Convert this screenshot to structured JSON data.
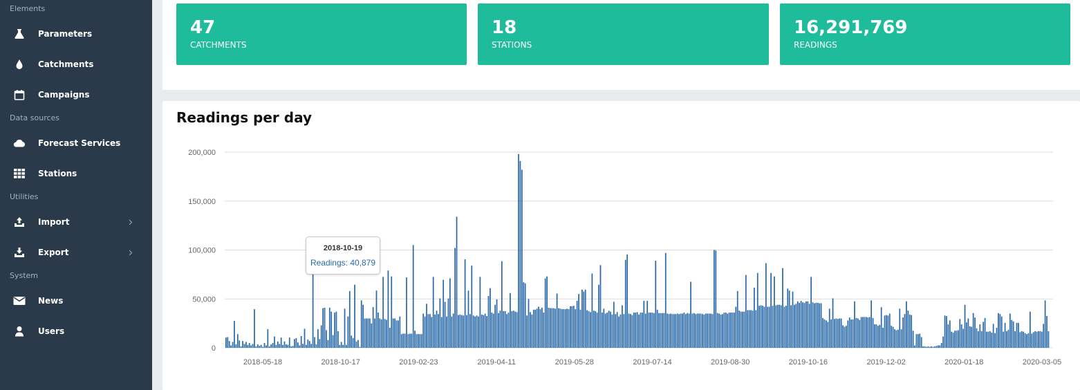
{
  "sidebar": {
    "sections": {
      "elements": "Elements",
      "data_sources": "Data sources",
      "utilities": "Utilities",
      "system": "System"
    },
    "items": [
      {
        "label": "Parameters",
        "icon": "flask-icon"
      },
      {
        "label": "Catchments",
        "icon": "drop-icon"
      },
      {
        "label": "Campaigns",
        "icon": "calendar-icon"
      },
      {
        "label": "Forecast Services",
        "icon": "cloud-icon"
      },
      {
        "label": "Stations",
        "icon": "grid-icon"
      },
      {
        "label": "Import",
        "icon": "upload-icon"
      },
      {
        "label": "Export",
        "icon": "download-icon"
      },
      {
        "label": "News",
        "icon": "envelope-icon"
      },
      {
        "label": "Users",
        "icon": "user-icon"
      }
    ]
  },
  "stats": [
    {
      "value": "47",
      "caption": "CATCHMENTS"
    },
    {
      "value": "18",
      "caption": "STATIONS"
    },
    {
      "value": "16,291,769",
      "caption": "READINGS"
    }
  ],
  "colors": {
    "sidebar": "#2b3a4a",
    "accent": "#1ebc9b",
    "bar": "#2a6aa8"
  },
  "tooltip": {
    "date": "2018-10-19",
    "text": "Readings: 40,879"
  },
  "chart_data": {
    "type": "bar",
    "title": "Readings per day",
    "xlabel": "",
    "ylabel": "",
    "ylim": [
      0,
      200000
    ],
    "yticks": [
      "0",
      "50,000",
      "100,000",
      "150,000",
      "200,000"
    ],
    "yticks_values": [
      0,
      50000,
      100000,
      150000,
      200000
    ],
    "xticks": [
      "2018-05-18",
      "2018-10-17",
      "2019-02-23",
      "2019-04-11",
      "2019-05-28",
      "2019-07-14",
      "2019-08-30",
      "2019-10-16",
      "2019-12-02",
      "2020-01-18",
      "2020-03-05"
    ],
    "grid": true,
    "series": [
      {
        "values": [
          10500,
          11000,
          7000,
          2500,
          6000,
          27500,
          3500,
          14000,
          7500,
          1500,
          7000,
          4000,
          6000,
          3000,
          5000,
          2500,
          4000,
          39500,
          1500,
          3500,
          2000,
          3000,
          1000,
          5000,
          2500,
          19000,
          1500,
          3500,
          5000,
          11500,
          3000,
          6500,
          4000,
          10500,
          3000,
          6500,
          3500,
          3000,
          10500,
          1500,
          2000,
          9000,
          10000,
          5500,
          2500,
          12000,
          4000,
          19500,
          3000,
          8500,
          7000,
          4000,
          75000,
          11000,
          3500,
          19000,
          9000,
          23000,
          40500,
          41000,
          18000,
          8000,
          41000,
          37000,
          13000,
          36000,
          37000,
          17000,
          3000,
          6000,
          3000,
          40000,
          3000,
          32000,
          58000,
          12500,
          10000,
          64500,
          6500,
          8000,
          1000,
          48500,
          44000,
          30000,
          30000,
          30000,
          30000,
          25000,
          41500,
          30000,
          58500,
          36000,
          30000,
          29000,
          72500,
          29500,
          28500,
          79000,
          20500,
          73000,
          30000,
          30000,
          28000,
          28000,
          32000,
          14000,
          14500,
          14500,
          72000,
          14000,
          14500,
          14500,
          105000,
          17500,
          14000,
          14000,
          14000,
          14000,
          35000,
          32000,
          45000,
          34500,
          34500,
          31500,
          72500,
          34000,
          38000,
          34500,
          50500,
          31500,
          69500,
          47000,
          32000,
          50500,
          71000,
          32000,
          35000,
          102000,
          134000,
          33500,
          34000,
          33500,
          33000,
          90500,
          33500,
          58500,
          34500,
          84000,
          33000,
          32000,
          33000,
          32000,
          72500,
          34000,
          33500,
          35000,
          32500,
          53000,
          61000,
          36000,
          35000,
          44000,
          49500,
          35500,
          38000,
          88500,
          37500,
          37500,
          34500,
          36000,
          56000,
          37500,
          38000,
          37000,
          36500,
          198000,
          191000,
          182000,
          67000,
          66000,
          33000,
          50000,
          36500,
          34000,
          39000,
          39000,
          40000,
          42000,
          39500,
          41000,
          36000,
          71000,
          73000,
          41000,
          40500,
          40500,
          40500,
          40000,
          55500,
          40500,
          40000,
          39500,
          39500,
          39500,
          40000,
          39500,
          42500,
          42500,
          43000,
          39500,
          48000,
          55000,
          39000,
          59500,
          57500,
          59500,
          38500,
          37500,
          36500,
          76000,
          38000,
          37500,
          36000,
          64500,
          84500,
          36000,
          40000,
          35000,
          36000,
          38000,
          37000,
          34000,
          47000,
          34500,
          36500,
          32000,
          34000,
          43500,
          34500,
          90000,
          95500,
          35000,
          34500,
          33500,
          36000,
          36000,
          36500,
          34000,
          36000,
          36000,
          48000,
          35000,
          48000,
          36000,
          36000,
          36000,
          35500,
          89000,
          39000,
          35500,
          35500,
          35500,
          35500,
          97000,
          35000,
          34500,
          35000,
          34500,
          34500,
          34500,
          35000,
          34500,
          35000,
          35000,
          36000,
          34500,
          35500,
          35000,
          67500,
          35000,
          35500,
          34500,
          35000,
          35000,
          35000,
          34500,
          34000,
          35000,
          35000,
          35000,
          35000,
          34500,
          100000,
          99500,
          35500,
          35000,
          34000,
          34500,
          36000,
          36000,
          35000,
          36000,
          36000,
          36000,
          36000,
          42000,
          58000,
          38000,
          37000,
          37000,
          37000,
          74500,
          38500,
          38500,
          38500,
          38000,
          61500,
          38500,
          76500,
          43000,
          43500,
          43000,
          42000,
          86500,
          42000,
          42000,
          76500,
          43000,
          73000,
          43500,
          44000,
          44000,
          43500,
          81500,
          42000,
          43000,
          60500,
          58500,
          43500,
          57500,
          44000,
          45000,
          47500,
          46000,
          48000,
          46500,
          46000,
          47500,
          47500,
          45000,
          72500,
          46500,
          45500,
          46000,
          46000,
          45500,
          45500,
          30500,
          29000,
          28000,
          26500,
          40000,
          29000,
          50500,
          29500,
          30000,
          29500,
          30000,
          30000,
          23000,
          21500,
          22500,
          28000,
          31000,
          29000,
          29000,
          47500,
          30500,
          30000,
          28500,
          31500,
          31500,
          31500,
          31500,
          31000,
          31500,
          48500,
          30500,
          24000,
          24000,
          22500,
          23500,
          41500,
          20500,
          33000,
          33500,
          33000,
          35000,
          22500,
          21500,
          19000,
          18000,
          18500,
          40000,
          19000,
          31000,
          34500,
          47500,
          38000,
          34000,
          33500,
          17500,
          2500,
          14000,
          14000,
          14500,
          11000,
          1500,
          1500,
          1000,
          1500,
          1000,
          1500,
          1000,
          1500,
          2000,
          2500,
          2500,
          5000,
          11500,
          33000,
          32500,
          24000,
          28000,
          16500,
          15500,
          17500,
          17500,
          18000,
          29500,
          24000,
          19500,
          44000,
          26000,
          30000,
          22000,
          21500,
          35500,
          31000,
          20000,
          17000,
          24000,
          17000,
          26500,
          30500,
          16500,
          16500,
          17000,
          15500,
          24500,
          15000,
          20500,
          35500,
          34500,
          32000,
          16500,
          25500,
          17000,
          18500,
          35000,
          28500,
          27000,
          17000,
          25500,
          25500,
          16000,
          17000,
          16500,
          15000,
          14000,
          15000,
          37000,
          14500,
          16000,
          17000,
          16500,
          17000,
          17000,
          16500,
          24500,
          48500,
          32500,
          17000
        ]
      }
    ]
  }
}
